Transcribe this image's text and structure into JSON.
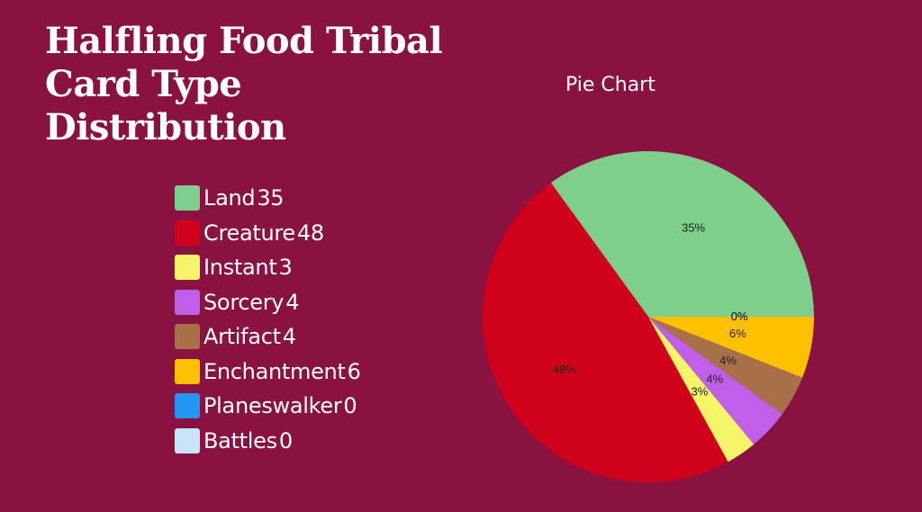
{
  "title_lines": [
    "Halfling Food Tribal",
    "Card Type",
    "Distribution"
  ],
  "chart_data": {
    "type": "pie",
    "title": "Pie Chart",
    "categories": [
      "Land",
      "Creature",
      "Instant",
      "Sorcery",
      "Artifact",
      "Enchantment",
      "Planeswalker",
      "Battles"
    ],
    "values": [
      35,
      48,
      3,
      4,
      4,
      6,
      0,
      0
    ],
    "percent_labels": [
      "35%",
      "48%",
      "3%",
      "4%",
      "4%",
      "6%",
      "0%",
      "0%"
    ],
    "colors": [
      "#7dcf8b",
      "#d0021b",
      "#f5f56a",
      "#c060e8",
      "#a87048",
      "#ffc000",
      "#2196f3",
      "#c8e4f8"
    ],
    "legend_placement": "left"
  }
}
